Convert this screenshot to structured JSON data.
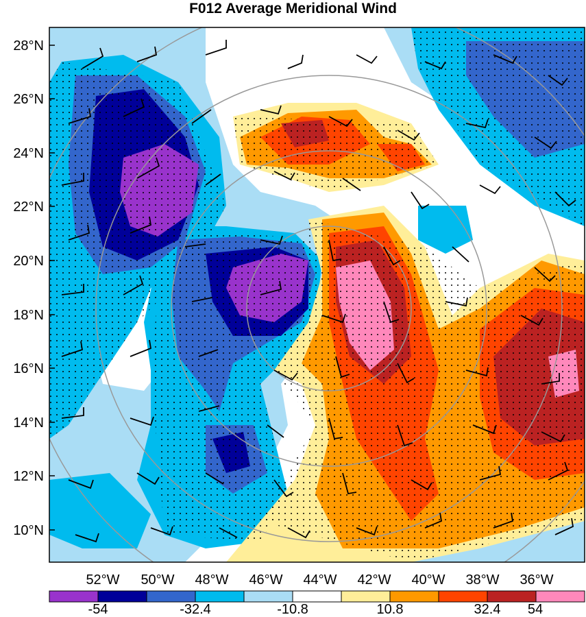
{
  "title": "F012 Average Meridional Wind",
  "latitude_labels": [
    "28°N",
    "26°N",
    "24°N",
    "22°N",
    "20°N",
    "18°N",
    "16°N",
    "14°N",
    "12°N",
    "10°N"
  ],
  "longitude_labels": [
    "52°W",
    "50°W",
    "48°W",
    "46°W",
    "44°W",
    "42°W",
    "40°W",
    "38°W",
    "36°W"
  ],
  "colorbar": {
    "colors": [
      "#9933cc",
      "#000099",
      "#3366cc",
      "#00bbee",
      "#aaddf5",
      "#ffffff",
      "#ffee99",
      "#ff9900",
      "#ff4400",
      "#bb2222",
      "#ff88bb"
    ],
    "tick_labels": [
      "-54",
      "-32.4",
      "-10.8",
      "10.8",
      "32.4",
      "54"
    ]
  }
}
